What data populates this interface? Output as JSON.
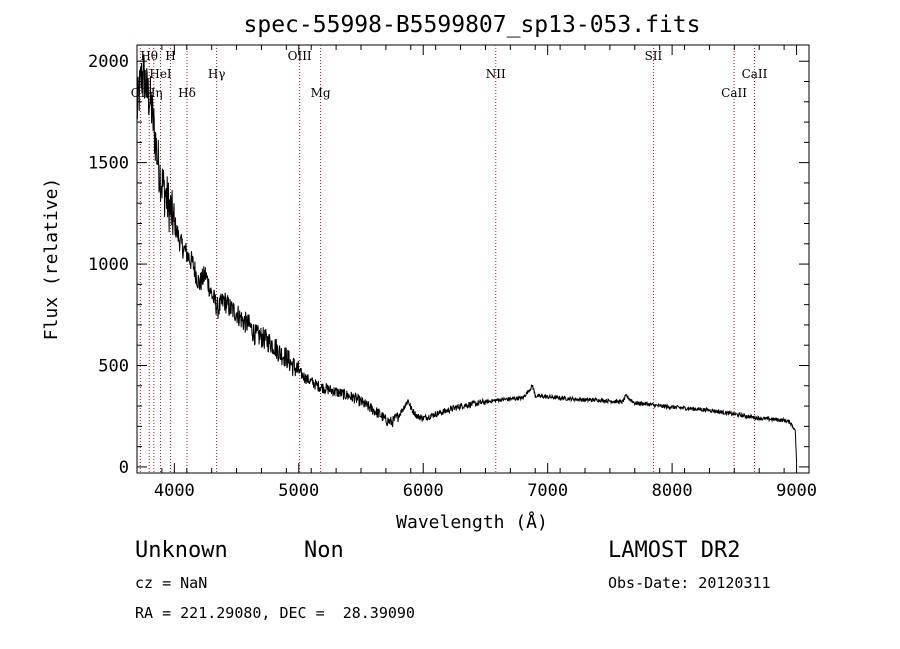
{
  "chart_data": {
    "type": "line",
    "title": "spec-55998-B5599807_sp13-053.fits",
    "xlabel": "Wavelength (Å)",
    "ylabel": "Flux (relative)",
    "xlim": [
      3700,
      9100
    ],
    "ylim": [
      -30,
      2080
    ],
    "xticks": [
      4000,
      5000,
      6000,
      7000,
      8000,
      9000
    ],
    "yticks": [
      0,
      500,
      1000,
      1500,
      2000
    ],
    "grid": false,
    "line_color": "#000000",
    "marker_color": "#aa2222",
    "series": [
      {
        "x": [
          3700,
          3730,
          3750,
          3780,
          3810,
          3840,
          3870,
          3900,
          3950,
          4000,
          4050,
          4100,
          4150,
          4200,
          4250,
          4300,
          4350,
          4400,
          4450,
          4500,
          4550,
          4600,
          4650,
          4700,
          4750,
          4800,
          4850,
          4900,
          4950,
          5000,
          5050,
          5100,
          5150,
          5200,
          5250,
          5300,
          5350,
          5400,
          5450,
          5500,
          5550,
          5600,
          5650,
          5700,
          5750,
          5800,
          5850,
          5880,
          5900,
          5950,
          6000,
          6100,
          6200,
          6300,
          6400,
          6500,
          6600,
          6700,
          6800,
          6880,
          6900,
          7000,
          7100,
          7200,
          7300,
          7400,
          7500,
          7600,
          7630,
          7700,
          7800,
          7900,
          8000,
          8100,
          8200,
          8300,
          8400,
          8500,
          8600,
          8700,
          8800,
          8900,
          8950,
          8990,
          9000
        ],
        "y": [
          1750,
          1900,
          1950,
          1850,
          1800,
          1650,
          1500,
          1400,
          1300,
          1200,
          1100,
          1050,
          1000,
          900,
          950,
          850,
          780,
          820,
          780,
          760,
          720,
          700,
          650,
          640,
          620,
          600,
          560,
          540,
          500,
          470,
          440,
          420,
          400,
          390,
          380,
          370,
          360,
          350,
          340,
          320,
          300,
          280,
          260,
          230,
          220,
          250,
          300,
          330,
          290,
          250,
          240,
          260,
          280,
          300,
          310,
          320,
          330,
          335,
          340,
          400,
          350,
          345,
          340,
          335,
          330,
          330,
          325,
          320,
          350,
          315,
          310,
          300,
          295,
          290,
          285,
          280,
          270,
          260,
          250,
          240,
          235,
          230,
          220,
          180,
          20
        ]
      }
    ],
    "line_markers": [
      {
        "name": "OII",
        "x": 3727,
        "label_row": 2
      },
      {
        "name": "Hθ",
        "x": 3798,
        "label_row": 0
      },
      {
        "name": "Hη",
        "x": 3835,
        "label_row": 2
      },
      {
        "name": "HeI",
        "x": 3889,
        "label_row": 1
      },
      {
        "name": "H",
        "x": 3969,
        "label_row": 0
      },
      {
        "name": "Hδ",
        "x": 4102,
        "label_row": 2
      },
      {
        "name": "Hγ",
        "x": 4340,
        "label_row": 1
      },
      {
        "name": "OIII",
        "x": 5007,
        "label_row": 0
      },
      {
        "name": "Mg",
        "x": 5175,
        "label_row": 2
      },
      {
        "name": "NII",
        "x": 6583,
        "label_row": 1
      },
      {
        "name": "SII",
        "x": 7850,
        "label_row": 0
      },
      {
        "name": "CaII",
        "x": 8498,
        "label_row": 2
      },
      {
        "name": "CaII",
        "x": 8662,
        "label_row": 1
      }
    ]
  },
  "info": {
    "class": "Unknown",
    "subclass": "Non",
    "survey": "LAMOST DR2",
    "cz": "cz = NaN",
    "obs_date": "Obs-Date: 20120311",
    "coords": "RA = 221.29080, DEC =  28.39090"
  }
}
